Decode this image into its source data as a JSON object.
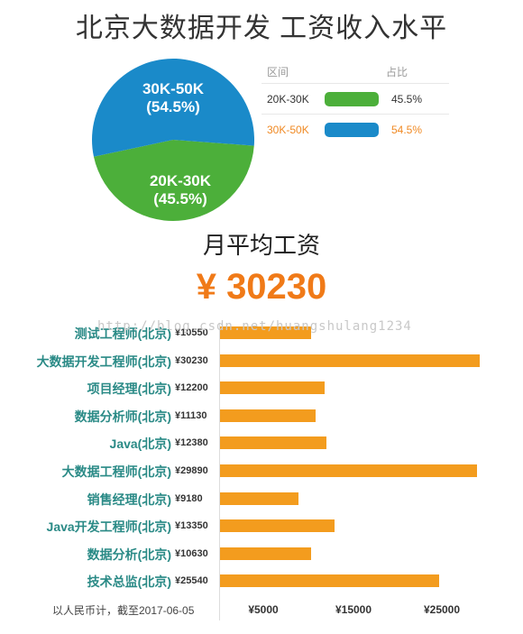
{
  "title": "北京大数据开发 工资收入水平",
  "distribution": {
    "legend_header_range": "区间",
    "legend_header_share": "占比",
    "slices": [
      {
        "range": "20K-30K",
        "percent_label": "(45.5%)",
        "legend_percent": "45.5%",
        "value": 45.5,
        "color": "#4caf3a"
      },
      {
        "range": "30K-50K",
        "percent_label": "(54.5%)",
        "legend_percent": "54.5%",
        "value": 54.5,
        "color": "#1a8ac9"
      }
    ]
  },
  "subtitle": "月平均工资",
  "average": "¥ 30230",
  "watermark": "http://blog.csdn.net/huangshulang1234",
  "chart_data": {
    "type": "bar",
    "orientation": "horizontal",
    "categories": [
      "测试工程师(北京)",
      "大数据开发工程师(北京)",
      "项目经理(北京)",
      "数据分析师(北京)",
      "Java(北京)",
      "大数据工程师(北京)",
      "销售经理(北京)",
      "Java开发工程师(北京)",
      "数据分析(北京)",
      "技术总监(北京)"
    ],
    "value_labels": [
      "¥10550",
      "¥30230",
      "¥12200",
      "¥11130",
      "¥12380",
      "¥29890",
      "¥9180",
      "¥13350",
      "¥10630",
      "¥25540"
    ],
    "values": [
      10550,
      30230,
      12200,
      11130,
      12380,
      29890,
      9180,
      13350,
      10630,
      25540
    ],
    "xlim": [
      0,
      32000
    ],
    "ticks": [
      {
        "value": 5000,
        "label": "¥5000"
      },
      {
        "value": 15000,
        "label": "¥15000"
      },
      {
        "value": 25000,
        "label": "¥25000"
      }
    ],
    "color": "#f39c1e"
  },
  "footnote": "以人民币计，截至2017-06-05"
}
